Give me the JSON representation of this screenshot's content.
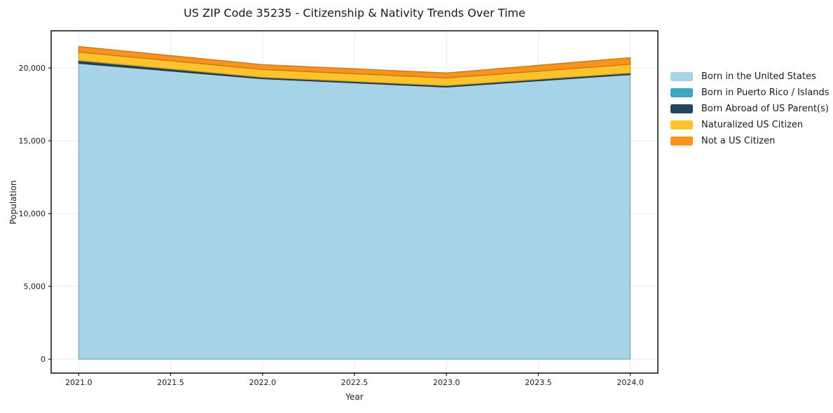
{
  "title": "US ZIP Code 35235 - Citizenship & Nativity Trends Over Time",
  "chart_data": {
    "type": "area",
    "stacked": true,
    "title": "US ZIP Code 35235 - Citizenship & Nativity Trends Over Time",
    "xlabel": "Year",
    "ylabel": "Population",
    "x": [
      2021,
      2022,
      2023,
      2024
    ],
    "series": [
      {
        "name": "Born in the United States",
        "color": "#a6d3e7",
        "values": [
          20320,
          19260,
          18690,
          19550
        ]
      },
      {
        "name": "Born in Puerto Rico / Islands",
        "color": "#3ba6c1",
        "values": [
          0,
          0,
          0,
          0
        ]
      },
      {
        "name": "Born Abroad of US Parent(s)",
        "color": "#24455c",
        "values": [
          190,
          100,
          100,
          100
        ]
      },
      {
        "name": "Naturalized US Citizen",
        "color": "#fcc32d",
        "values": [
          580,
          530,
          520,
          600
        ]
      },
      {
        "name": "Not a US Citizen",
        "color": "#f6941e",
        "values": [
          385,
          335,
          340,
          455
        ]
      }
    ],
    "stacked_totals": [
      21475,
      20225,
      19650,
      20705
    ],
    "xlim": [
      2020.85,
      2024.15
    ],
    "ylim": [
      -960,
      22550
    ],
    "xticks": {
      "values": [
        2021.0,
        2021.5,
        2022.0,
        2022.5,
        2023.0,
        2023.5,
        2024.0
      ],
      "labels": [
        "2021.0",
        "2021.5",
        "2022.0",
        "2022.5",
        "2023.0",
        "2023.5",
        "2024.0"
      ]
    },
    "yticks": {
      "values": [
        0,
        5000,
        10000,
        15000,
        20000
      ],
      "labels": [
        "0",
        "5,000",
        "10,000",
        "15,000",
        "20,000"
      ]
    },
    "grid": true,
    "legend_position": "right-outside",
    "colors": {
      "background": "#ffffff",
      "spine": "#1a1a1a",
      "grid": "#eaeaef",
      "tick_text": "#1a1a1a"
    }
  }
}
